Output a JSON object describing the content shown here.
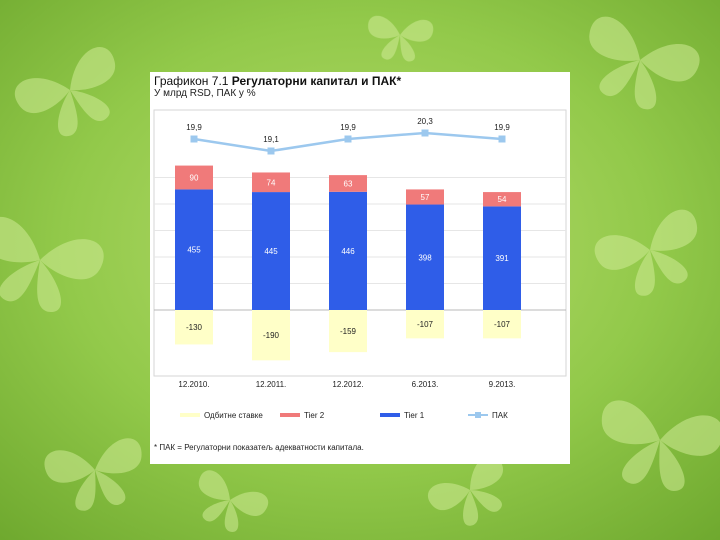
{
  "slide": {
    "background_colors": [
      "#b4d96a",
      "#8cc63f",
      "#6fae2e"
    ],
    "butterfly_color": "#c8e88a"
  },
  "chart_card": {
    "title_prefix": "Графикон 7.1",
    "title_main": "Регулаторни капитал и ПАК*",
    "subtitle": "У млрд RSD, ПАК у %",
    "footnote": "* ПАК = Регулаторни показатељ адекватности капитала."
  },
  "chart_data": {
    "type": "bar",
    "stacked": true,
    "categories": [
      "12.2010.",
      "12.2011.",
      "12.2012.",
      "6.2013.",
      "9.2013."
    ],
    "series": [
      {
        "name": "Одбитне ставке",
        "kind": "bar",
        "color": "#ffffc8",
        "values": [
          -130,
          -190,
          -159,
          -107,
          -107
        ]
      },
      {
        "name": "Tier 2",
        "kind": "bar",
        "color": "#f07a7a",
        "values": [
          90,
          74,
          63,
          57,
          54
        ]
      },
      {
        "name": "Tier 1",
        "kind": "bar",
        "color": "#2f5de8",
        "values": [
          455,
          445,
          446,
          398,
          391
        ]
      },
      {
        "name": "ПАК",
        "kind": "line",
        "color": "#9cc8ee",
        "values": [
          19.9,
          19.1,
          19.9,
          20.3,
          19.9
        ]
      }
    ],
    "ylim_bars": [
      -200,
      600
    ],
    "ylim_line": [
      0,
      22
    ],
    "grid": true,
    "legend": "bottom"
  }
}
